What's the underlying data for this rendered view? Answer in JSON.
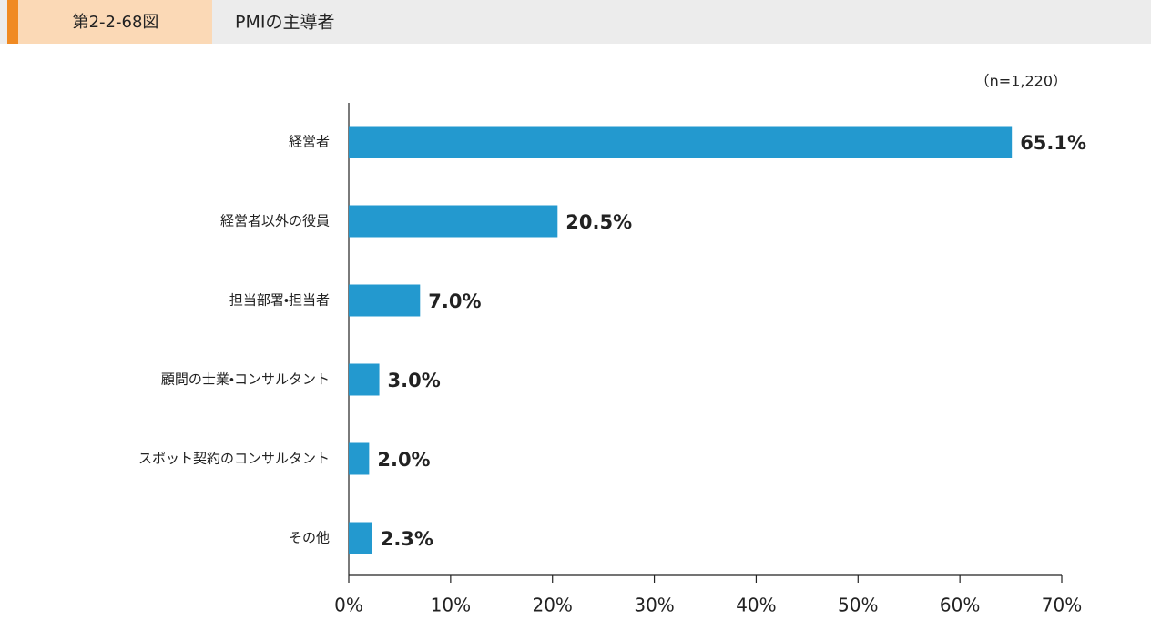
{
  "header": {
    "figure_label": "第2-2-68図"
  },
  "chart_data": {
    "type": "bar",
    "orientation": "horizontal",
    "title": "PMIの主導者",
    "note": "（n=1,220）",
    "categories": [
      "経営者",
      "経営者以外の役員",
      "担当部署・担当者",
      "顧問の士業・コンサルタント",
      "スポット契約のコンサルタント",
      "その他"
    ],
    "values": [
      65.1,
      20.5,
      7.0,
      3.0,
      2.0,
      2.3
    ],
    "value_labels": [
      "65.1%",
      "20.5%",
      "7.0%",
      "3.0%",
      "2.0%",
      "2.3%"
    ],
    "color": "#2399cf",
    "xlim": [
      0,
      70
    ],
    "xticks": [
      {
        "value": 0,
        "label": "0%"
      },
      {
        "value": 10,
        "label": "10%"
      },
      {
        "value": 20,
        "label": "20%"
      },
      {
        "value": 30,
        "label": "30%"
      },
      {
        "value": 40,
        "label": "40%"
      },
      {
        "value": 50,
        "label": "50%"
      },
      {
        "value": 60,
        "label": "60%"
      },
      {
        "value": 70,
        "label": "70%"
      }
    ],
    "grid": false
  }
}
